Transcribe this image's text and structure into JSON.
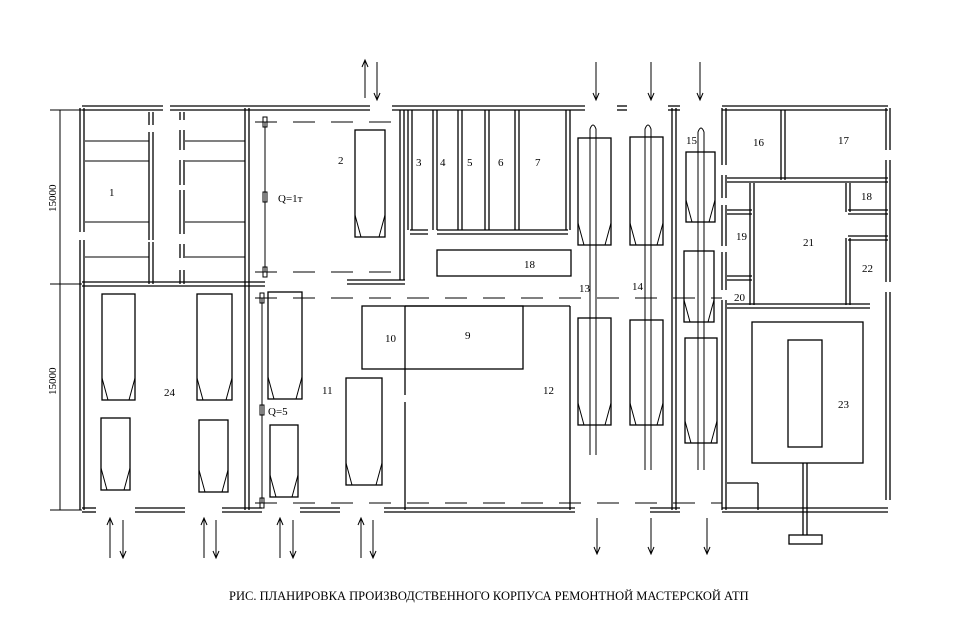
{
  "dimensions": {
    "upper": "15000",
    "lower": "15000"
  },
  "cranes": {
    "upper_capacity": "Q=1т",
    "lower_capacity": "Q=5"
  },
  "rooms": [
    "1",
    "2",
    "3",
    "4",
    "5",
    "6",
    "7",
    "18",
    "9",
    "10",
    "11",
    "12",
    "13",
    "14",
    "15",
    "16",
    "17",
    "18",
    "19",
    "20",
    "21",
    "22",
    "23",
    "24"
  ],
  "caption": "РИС. ПЛАНИРОВКА ПРОИЗВОДСТВЕННОГО КОРПУСА  РЕМОНТНОЙ МАСТЕРСКОЙ АТП"
}
